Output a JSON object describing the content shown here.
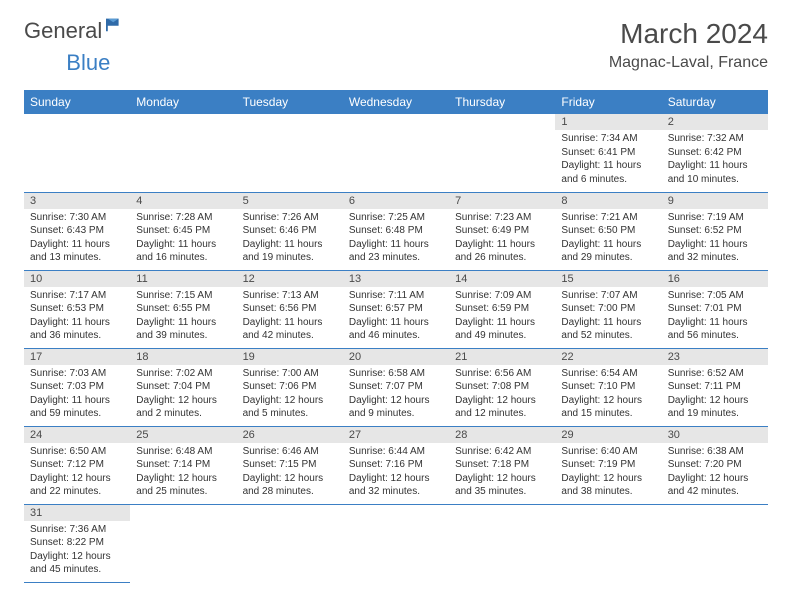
{
  "logo": {
    "text1": "General",
    "text2": "Blue"
  },
  "title": "March 2024",
  "location": "Magnac-Laval, France",
  "colors": {
    "header_bg": "#3b7fc4",
    "header_fg": "#ffffff",
    "daynum_bg": "#e6e6e6",
    "text": "#333333",
    "border": "#3b7fc4"
  },
  "weekdays": [
    "Sunday",
    "Monday",
    "Tuesday",
    "Wednesday",
    "Thursday",
    "Friday",
    "Saturday"
  ],
  "weeks": [
    [
      null,
      null,
      null,
      null,
      null,
      {
        "n": "1",
        "sr": "7:34 AM",
        "ss": "6:41 PM",
        "dl": "11 hours and 6 minutes."
      },
      {
        "n": "2",
        "sr": "7:32 AM",
        "ss": "6:42 PM",
        "dl": "11 hours and 10 minutes."
      }
    ],
    [
      {
        "n": "3",
        "sr": "7:30 AM",
        "ss": "6:43 PM",
        "dl": "11 hours and 13 minutes."
      },
      {
        "n": "4",
        "sr": "7:28 AM",
        "ss": "6:45 PM",
        "dl": "11 hours and 16 minutes."
      },
      {
        "n": "5",
        "sr": "7:26 AM",
        "ss": "6:46 PM",
        "dl": "11 hours and 19 minutes."
      },
      {
        "n": "6",
        "sr": "7:25 AM",
        "ss": "6:48 PM",
        "dl": "11 hours and 23 minutes."
      },
      {
        "n": "7",
        "sr": "7:23 AM",
        "ss": "6:49 PM",
        "dl": "11 hours and 26 minutes."
      },
      {
        "n": "8",
        "sr": "7:21 AM",
        "ss": "6:50 PM",
        "dl": "11 hours and 29 minutes."
      },
      {
        "n": "9",
        "sr": "7:19 AM",
        "ss": "6:52 PM",
        "dl": "11 hours and 32 minutes."
      }
    ],
    [
      {
        "n": "10",
        "sr": "7:17 AM",
        "ss": "6:53 PM",
        "dl": "11 hours and 36 minutes."
      },
      {
        "n": "11",
        "sr": "7:15 AM",
        "ss": "6:55 PM",
        "dl": "11 hours and 39 minutes."
      },
      {
        "n": "12",
        "sr": "7:13 AM",
        "ss": "6:56 PM",
        "dl": "11 hours and 42 minutes."
      },
      {
        "n": "13",
        "sr": "7:11 AM",
        "ss": "6:57 PM",
        "dl": "11 hours and 46 minutes."
      },
      {
        "n": "14",
        "sr": "7:09 AM",
        "ss": "6:59 PM",
        "dl": "11 hours and 49 minutes."
      },
      {
        "n": "15",
        "sr": "7:07 AM",
        "ss": "7:00 PM",
        "dl": "11 hours and 52 minutes."
      },
      {
        "n": "16",
        "sr": "7:05 AM",
        "ss": "7:01 PM",
        "dl": "11 hours and 56 minutes."
      }
    ],
    [
      {
        "n": "17",
        "sr": "7:03 AM",
        "ss": "7:03 PM",
        "dl": "11 hours and 59 minutes."
      },
      {
        "n": "18",
        "sr": "7:02 AM",
        "ss": "7:04 PM",
        "dl": "12 hours and 2 minutes."
      },
      {
        "n": "19",
        "sr": "7:00 AM",
        "ss": "7:06 PM",
        "dl": "12 hours and 5 minutes."
      },
      {
        "n": "20",
        "sr": "6:58 AM",
        "ss": "7:07 PM",
        "dl": "12 hours and 9 minutes."
      },
      {
        "n": "21",
        "sr": "6:56 AM",
        "ss": "7:08 PM",
        "dl": "12 hours and 12 minutes."
      },
      {
        "n": "22",
        "sr": "6:54 AM",
        "ss": "7:10 PM",
        "dl": "12 hours and 15 minutes."
      },
      {
        "n": "23",
        "sr": "6:52 AM",
        "ss": "7:11 PM",
        "dl": "12 hours and 19 minutes."
      }
    ],
    [
      {
        "n": "24",
        "sr": "6:50 AM",
        "ss": "7:12 PM",
        "dl": "12 hours and 22 minutes."
      },
      {
        "n": "25",
        "sr": "6:48 AM",
        "ss": "7:14 PM",
        "dl": "12 hours and 25 minutes."
      },
      {
        "n": "26",
        "sr": "6:46 AM",
        "ss": "7:15 PM",
        "dl": "12 hours and 28 minutes."
      },
      {
        "n": "27",
        "sr": "6:44 AM",
        "ss": "7:16 PM",
        "dl": "12 hours and 32 minutes."
      },
      {
        "n": "28",
        "sr": "6:42 AM",
        "ss": "7:18 PM",
        "dl": "12 hours and 35 minutes."
      },
      {
        "n": "29",
        "sr": "6:40 AM",
        "ss": "7:19 PM",
        "dl": "12 hours and 38 minutes."
      },
      {
        "n": "30",
        "sr": "6:38 AM",
        "ss": "7:20 PM",
        "dl": "12 hours and 42 minutes."
      }
    ],
    [
      {
        "n": "31",
        "sr": "7:36 AM",
        "ss": "8:22 PM",
        "dl": "12 hours and 45 minutes."
      },
      null,
      null,
      null,
      null,
      null,
      null
    ]
  ],
  "labels": {
    "sunrise": "Sunrise: ",
    "sunset": "Sunset: ",
    "daylight": "Daylight: "
  }
}
